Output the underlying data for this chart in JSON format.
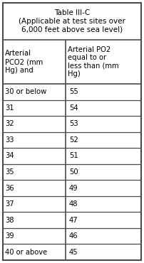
{
  "title_line1": "Table III-C",
  "title_line2": "(Applicable at test sites over",
  "title_line3": "6,000 feet above sea level)",
  "col1_header": "Arterial\nPCO2 (mm\nHg) and",
  "col2_header": "Arterial PO2\nequal to or\nless than (mm\nHg)",
  "rows": [
    [
      "30 or below",
      "55"
    ],
    [
      "31",
      "54"
    ],
    [
      "32",
      "53"
    ],
    [
      "33",
      "52"
    ],
    [
      "34",
      "51"
    ],
    [
      "35",
      "50"
    ],
    [
      "36",
      "49"
    ],
    [
      "37",
      "48"
    ],
    [
      "38",
      "47"
    ],
    [
      "39",
      "46"
    ],
    [
      "40 or above",
      "45"
    ]
  ],
  "bg_color": "#ffffff",
  "border_color": "#4a4a4a",
  "text_color": "#000000",
  "figsize": [
    2.02,
    3.7
  ],
  "dpi": 100
}
